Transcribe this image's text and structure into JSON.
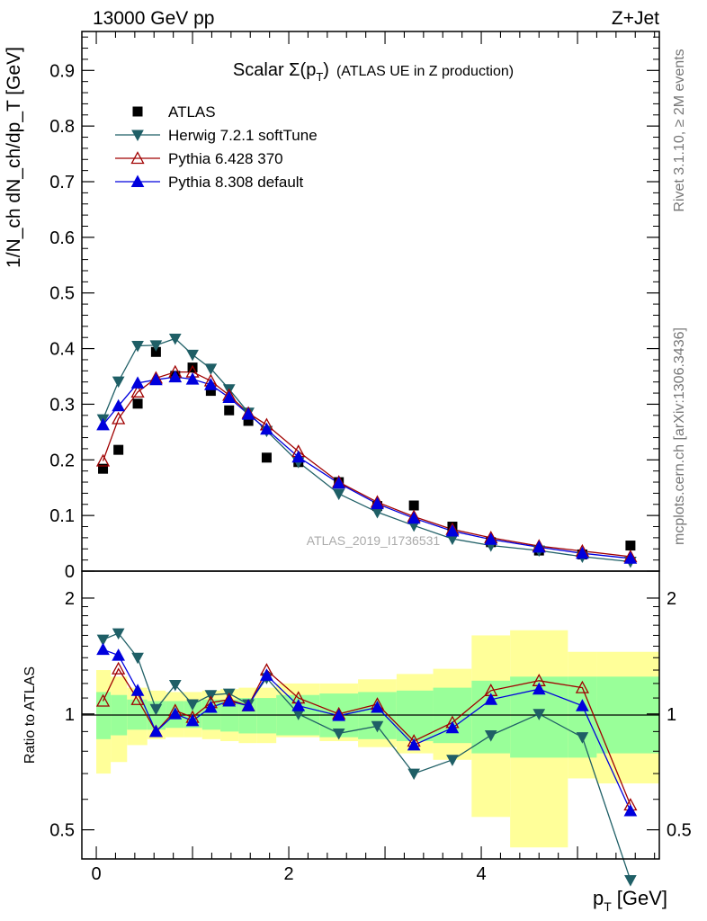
{
  "header": {
    "left": "13000 GeV pp",
    "right": "Z+Jet"
  },
  "side_labels": {
    "rivet": "Rivet 3.1.10, ≥ 2M events",
    "mcplots": "mcplots.cern.ch [arXiv:1306.3436]"
  },
  "watermark": "ATLAS_2019_I1736531",
  "colors": {
    "atlas": "#000000",
    "herwig": "#1f5f66",
    "pythia6": "#a00000",
    "pythia8": "#0000dd",
    "band_inner": "#99ff99",
    "band_outer": "#ffff99"
  },
  "chart_data": [
    {
      "type": "scatter",
      "title": "Scalar Σ(p_T) (ATLAS UE in Z production)",
      "title_main": "Scalar ",
      "title_sigma": "Σ(p",
      "title_sub": "T",
      "title_close": ")",
      "title_rest": "(ATLAS UE in Z production)",
      "ylabel": "1/N_ch dN_ch/dp_T [GeV]",
      "ylim": [
        0,
        0.97
      ],
      "xlim": [
        -0.15,
        5.85
      ],
      "yticks": [
        0,
        0.1,
        0.2,
        0.3,
        0.4,
        0.5,
        0.6,
        0.7,
        0.8,
        0.9
      ],
      "legend_position": "top-left",
      "x": [
        0.07,
        0.23,
        0.43,
        0.62,
        0.82,
        1.0,
        1.19,
        1.38,
        1.58,
        1.77,
        2.1,
        2.52,
        2.92,
        3.3,
        3.7,
        4.1,
        4.6,
        5.05,
        5.55
      ],
      "series": [
        {
          "name": "ATLAS",
          "key": "atlas",
          "marker": "square",
          "values": [
            0.184,
            0.218,
            0.301,
            0.394,
            0.351,
            0.366,
            0.324,
            0.289,
            0.27,
            0.204,
            0.196,
            0.16,
            0.117,
            0.118,
            0.08,
            0.052,
            0.037,
            0.03,
            0.046
          ]
        },
        {
          "name": "Herwig 7.2.1 softTune",
          "key": "herwig",
          "marker": "triangle-down",
          "values": [
            0.273,
            0.341,
            0.405,
            0.406,
            0.418,
            0.389,
            0.364,
            0.327,
            0.285,
            0.252,
            0.196,
            0.139,
            0.106,
            0.082,
            0.058,
            0.046,
            0.037,
            0.026,
            0.017
          ]
        },
        {
          "name": "Pythia 6.428 370",
          "key": "pythia6",
          "marker": "triangle-open",
          "values": [
            0.198,
            0.274,
            0.322,
            0.347,
            0.358,
            0.358,
            0.342,
            0.316,
            0.284,
            0.263,
            0.215,
            0.16,
            0.124,
            0.098,
            0.075,
            0.06,
            0.045,
            0.036,
            0.026
          ]
        },
        {
          "name": "Pythia 8.308 default",
          "key": "pythia8",
          "marker": "triangle-up",
          "values": [
            0.263,
            0.297,
            0.338,
            0.344,
            0.349,
            0.345,
            0.335,
            0.312,
            0.282,
            0.255,
            0.205,
            0.158,
            0.121,
            0.095,
            0.072,
            0.057,
            0.043,
            0.032,
            0.023
          ]
        }
      ]
    },
    {
      "type": "line",
      "ylabel": "Ratio to ATLAS",
      "xlabel": "p_T [GeV]",
      "xlabel_main": "p",
      "xlabel_sub": "T",
      "xlabel_unit": "[GeV]",
      "scale": "log",
      "ylim": [
        0.42,
        2.35
      ],
      "xlim": [
        -0.15,
        5.85
      ],
      "yticks": [
        0.5,
        1,
        2
      ],
      "ytick_labels": [
        "0.5",
        "1",
        "2"
      ],
      "xticks": [
        0,
        2,
        4
      ],
      "xtick_labels": [
        "0",
        "2",
        "4"
      ],
      "bin_edges": [
        0.0,
        0.15,
        0.32,
        0.53,
        0.72,
        0.91,
        1.1,
        1.29,
        1.48,
        1.67,
        1.87,
        2.32,
        2.72,
        3.12,
        3.5,
        3.9,
        4.3,
        4.9,
        5.2,
        5.85
      ],
      "band_inner": {
        "lo": [
          0.86,
          0.88,
          0.91,
          0.91,
          0.92,
          0.92,
          0.91,
          0.9,
          0.89,
          0.89,
          0.88,
          0.87,
          0.86,
          0.85,
          0.84,
          0.79,
          0.77,
          0.77,
          0.79
        ],
        "hi": [
          1.14,
          1.12,
          1.09,
          1.08,
          1.08,
          1.08,
          1.09,
          1.09,
          1.1,
          1.1,
          1.12,
          1.13,
          1.14,
          1.15,
          1.17,
          1.22,
          1.25,
          1.25,
          1.25
        ]
      },
      "band_outer": {
        "lo": [
          0.7,
          0.75,
          0.83,
          0.86,
          0.87,
          0.87,
          0.86,
          0.85,
          0.84,
          0.84,
          0.87,
          0.85,
          0.82,
          0.79,
          0.76,
          0.54,
          0.45,
          0.68,
          0.66
        ],
        "hi": [
          1.3,
          1.25,
          1.17,
          1.15,
          1.14,
          1.14,
          1.15,
          1.16,
          1.17,
          1.17,
          1.2,
          1.2,
          1.23,
          1.27,
          1.31,
          1.6,
          1.65,
          1.45,
          1.45
        ]
      },
      "series": [
        {
          "name": "Herwig 7.2.1 softTune",
          "key": "herwig",
          "marker": "triangle-down",
          "values": [
            1.56,
            1.62,
            1.4,
            1.03,
            1.19,
            1.06,
            1.12,
            1.13,
            1.06,
            1.24,
            1.0,
            0.89,
            0.93,
            0.7,
            0.76,
            0.88,
            1.0,
            0.87,
            0.37
          ]
        },
        {
          "name": "Pythia 6.428 370",
          "key": "pythia6",
          "marker": "triangle-open",
          "values": [
            1.08,
            1.31,
            1.09,
            0.9,
            1.02,
            0.98,
            1.07,
            1.09,
            1.05,
            1.3,
            1.1,
            1.0,
            1.06,
            0.85,
            0.95,
            1.15,
            1.22,
            1.17,
            0.58
          ]
        },
        {
          "name": "Pythia 8.308 default",
          "key": "pythia8",
          "marker": "triangle-up",
          "values": [
            1.47,
            1.42,
            1.15,
            0.9,
            1.0,
            0.96,
            1.04,
            1.08,
            1.05,
            1.26,
            1.05,
            0.99,
            1.04,
            0.83,
            0.92,
            1.09,
            1.16,
            1.05,
            0.56
          ]
        }
      ]
    }
  ]
}
